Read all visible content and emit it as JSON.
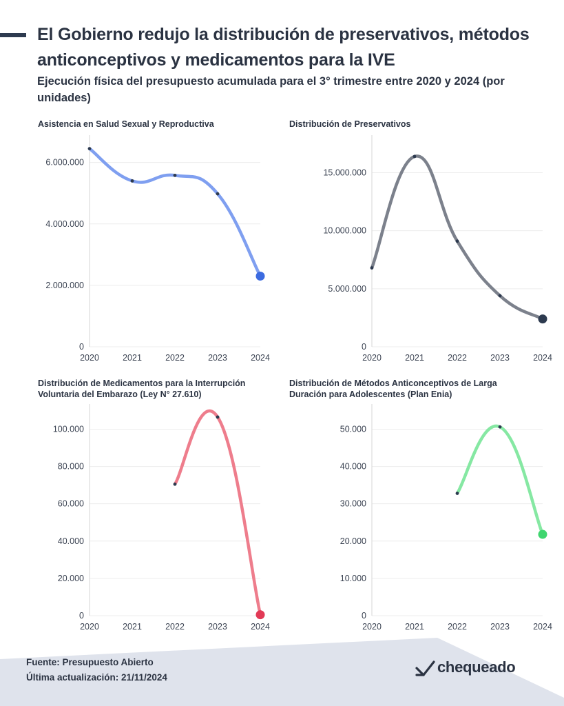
{
  "header": {
    "title": "El Gobierno redujo la distribución de preservativos, métodos anticonceptivos y medicamentos para la IVE",
    "subtitle": "Ejecución física del presupuesto acumulada para el 3° trimestre entre 2020 y 2024 (por unidades)"
  },
  "chart_data": [
    {
      "type": "line",
      "title": "Asistencia en Salud Sexual y Reproductiva",
      "color": "#7f9ff0",
      "accent": "#3c6be0",
      "x": [
        2020,
        2021,
        2022,
        2023,
        2024
      ],
      "values": [
        6450000,
        5400000,
        5580000,
        4980000,
        2300000
      ],
      "ylim": [
        0,
        6800000
      ],
      "yticks": [
        0,
        2000000,
        4000000,
        6000000
      ],
      "ytick_labels": [
        "0",
        "2.000.000",
        "4.000.000",
        "6.000.000"
      ]
    },
    {
      "type": "line",
      "title": "Distribución de Preservativos",
      "color": "#7c818c",
      "accent": "#2d3a4f",
      "x": [
        2020,
        2021,
        2022,
        2023,
        2024
      ],
      "values": [
        6800000,
        16400000,
        9100000,
        4400000,
        2400000
      ],
      "ylim": [
        0,
        18000000
      ],
      "yticks": [
        0,
        5000000,
        10000000,
        15000000
      ],
      "ytick_labels": [
        "0",
        "5.000.000",
        "10.000.000",
        "15.000.000"
      ]
    },
    {
      "type": "line",
      "title": "Distribución de Medicamentos para la Interrupción Voluntaria del Embarazo (Ley N° 27.610)",
      "color": "#ee7d8c",
      "accent": "#e23a56",
      "x": [
        2020,
        2021,
        2022,
        2023,
        2024
      ],
      "values": [
        null,
        null,
        70500,
        106500,
        500
      ],
      "ylim": [
        0,
        112000
      ],
      "yticks": [
        0,
        20000,
        40000,
        60000,
        80000,
        100000
      ],
      "ytick_labels": [
        "0",
        "20.000",
        "40.000",
        "60.000",
        "80.000",
        "100.000"
      ]
    },
    {
      "type": "line",
      "title": "Distribución de Métodos Anticonceptivos de Larga Duración para Adolescentes (Plan Enia)",
      "color": "#86e8a3",
      "accent": "#3fd66f",
      "x": [
        2020,
        2021,
        2022,
        2023,
        2024
      ],
      "values": [
        null,
        null,
        32800,
        50600,
        21800
      ],
      "ylim": [
        0,
        56000
      ],
      "yticks": [
        0,
        10000,
        20000,
        30000,
        40000,
        50000
      ],
      "ytick_labels": [
        "0",
        "10.000",
        "20.000",
        "30.000",
        "40.000",
        "50.000"
      ]
    }
  ],
  "footer": {
    "source": "Fuente: Presupuesto Abierto",
    "updated": "Última actualización: 21/11/2024"
  },
  "brand": {
    "logo_text": "chequeado",
    "logo_icon": "chequeado-check-icon"
  }
}
